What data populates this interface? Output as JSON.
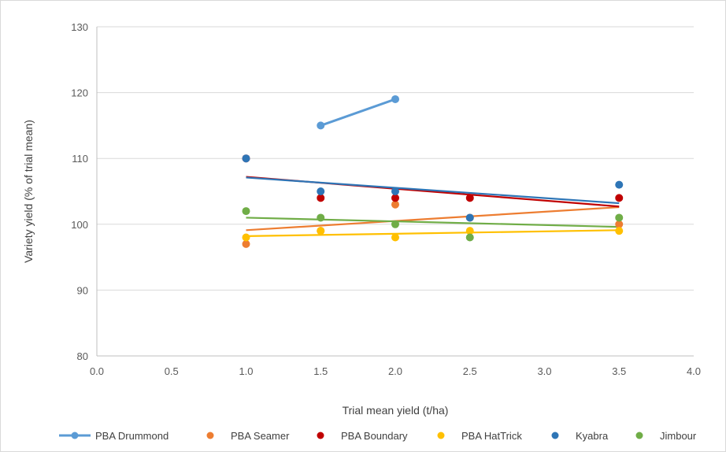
{
  "chart_data": {
    "type": "scatter",
    "xlabel": "Trial mean yield (t/ha)",
    "ylabel": "Variety yield (% of trial mean)",
    "xlim": [
      0.0,
      4.0
    ],
    "ylim": [
      80,
      130
    ],
    "x_ticks": [
      "0.0",
      "0.5",
      "1.0",
      "1.5",
      "2.0",
      "2.5",
      "3.0",
      "3.5",
      "4.0"
    ],
    "y_ticks": [
      "80",
      "90",
      "100",
      "110",
      "120",
      "130"
    ],
    "grid": "horizontal",
    "legend_position": "bottom",
    "series": [
      {
        "name": "PBA Drummond",
        "color": "#5b9bd5",
        "style": "line-markers",
        "points": [
          [
            1.5,
            115
          ],
          [
            2.0,
            119
          ]
        ]
      },
      {
        "name": "PBA Seamer",
        "color": "#ed7d31",
        "style": "markers-trend",
        "points": [
          [
            1.0,
            97
          ],
          [
            1.5,
            99
          ],
          [
            2.0,
            103
          ],
          [
            2.5,
            101
          ],
          [
            3.5,
            100
          ]
        ],
        "trend": [
          [
            1.0,
            99.1
          ],
          [
            3.5,
            102.6
          ]
        ]
      },
      {
        "name": "PBA Boundary",
        "color": "#c00000",
        "style": "markers-trend",
        "points": [
          [
            1.0,
            110
          ],
          [
            1.5,
            104
          ],
          [
            2.0,
            104
          ],
          [
            2.5,
            104
          ],
          [
            3.5,
            104
          ]
        ],
        "trend": [
          [
            1.0,
            107.2
          ],
          [
            3.5,
            102.7
          ]
        ]
      },
      {
        "name": "PBA HatTrick",
        "color": "#ffc000",
        "style": "markers-trend",
        "points": [
          [
            1.0,
            98
          ],
          [
            1.5,
            99
          ],
          [
            2.0,
            98
          ],
          [
            2.5,
            99
          ],
          [
            3.5,
            99
          ]
        ],
        "trend": [
          [
            1.0,
            98.2
          ],
          [
            3.5,
            99.1
          ]
        ]
      },
      {
        "name": "Kyabra",
        "color": "#2e75b6",
        "style": "markers-trend",
        "points": [
          [
            1.0,
            110
          ],
          [
            1.5,
            105
          ],
          [
            2.0,
            105
          ],
          [
            2.5,
            101
          ],
          [
            3.5,
            106
          ]
        ],
        "trend": [
          [
            1.0,
            107.1
          ],
          [
            3.5,
            103.2
          ]
        ]
      },
      {
        "name": "Jimbour",
        "color": "#70ad47",
        "style": "markers-trend",
        "points": [
          [
            1.0,
            102
          ],
          [
            1.5,
            101
          ],
          [
            2.0,
            100
          ],
          [
            2.5,
            98
          ],
          [
            3.5,
            101
          ]
        ],
        "trend": [
          [
            1.0,
            101.0
          ],
          [
            3.5,
            99.6
          ]
        ]
      }
    ]
  }
}
